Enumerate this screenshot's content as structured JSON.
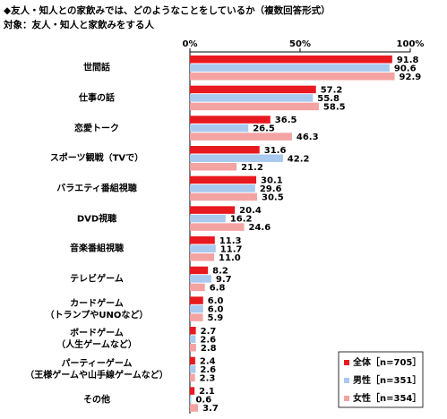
{
  "chart_data": {
    "type": "hbar",
    "title": "◆友人・知人との家飲みでは、どのようなことをしているか（複数回答形式）",
    "subtitle": "対象：友人・知人と家飲みをする人",
    "categories": [
      "世間話",
      "仕事の話",
      "恋愛トーク",
      "スポーツ観戦（TVで）",
      "バラエティ番組視聴",
      "DVD視聴",
      "音楽番組視聴",
      "テレビゲーム",
      "カードゲーム\n（トランプやUNOなど）",
      "ボードゲーム\n（人生ゲームなど）",
      "パーティーゲーム\n（王様ゲームや山手線ゲームなど）",
      "その他"
    ],
    "series": [
      {
        "name": "全体［n=705］",
        "color": "#e8191f",
        "values": [
          91.8,
          57.2,
          36.5,
          31.6,
          30.1,
          20.4,
          11.3,
          8.2,
          6,
          2.7,
          2.4,
          2.1
        ],
        "value_labels": [
          "91.8",
          "57.2",
          "36.5",
          "31.6",
          "30.1",
          "20.4",
          "11.3",
          "8.2",
          "6.0",
          "2.7",
          "2.4",
          "2.1"
        ]
      },
      {
        "name": "男性［n=351］",
        "color": "#a9c9ef",
        "values": [
          90.6,
          55.8,
          26.5,
          42.2,
          29.6,
          16.2,
          11.7,
          9.7,
          6,
          2.6,
          2.6,
          0.6
        ],
        "value_labels": [
          "90.6",
          "55.8",
          "26.5",
          "42.2",
          "29.6",
          "16.2",
          "11.7",
          "9.7",
          "6.0",
          "2.6",
          "2.6",
          "0.6"
        ]
      },
      {
        "name": "女性［n=354］",
        "color": "#f4a3a3",
        "values": [
          92.9,
          58.5,
          46.3,
          21.2,
          30.5,
          24.6,
          11,
          6.8,
          5.9,
          2.8,
          2.3,
          3.7
        ],
        "value_labels": [
          "92.9",
          "58.5",
          "46.3",
          "21.2",
          "30.5",
          "24.6",
          "11.0",
          "6.8",
          "5.9",
          "2.8",
          "2.3",
          "3.7"
        ]
      }
    ],
    "xlim": [
      0,
      100
    ],
    "xticks": [
      {
        "value": 0,
        "label": "0%"
      },
      {
        "value": 50,
        "label": "50%"
      },
      {
        "value": 100,
        "label": "100%"
      }
    ],
    "legend": "lower-right"
  }
}
